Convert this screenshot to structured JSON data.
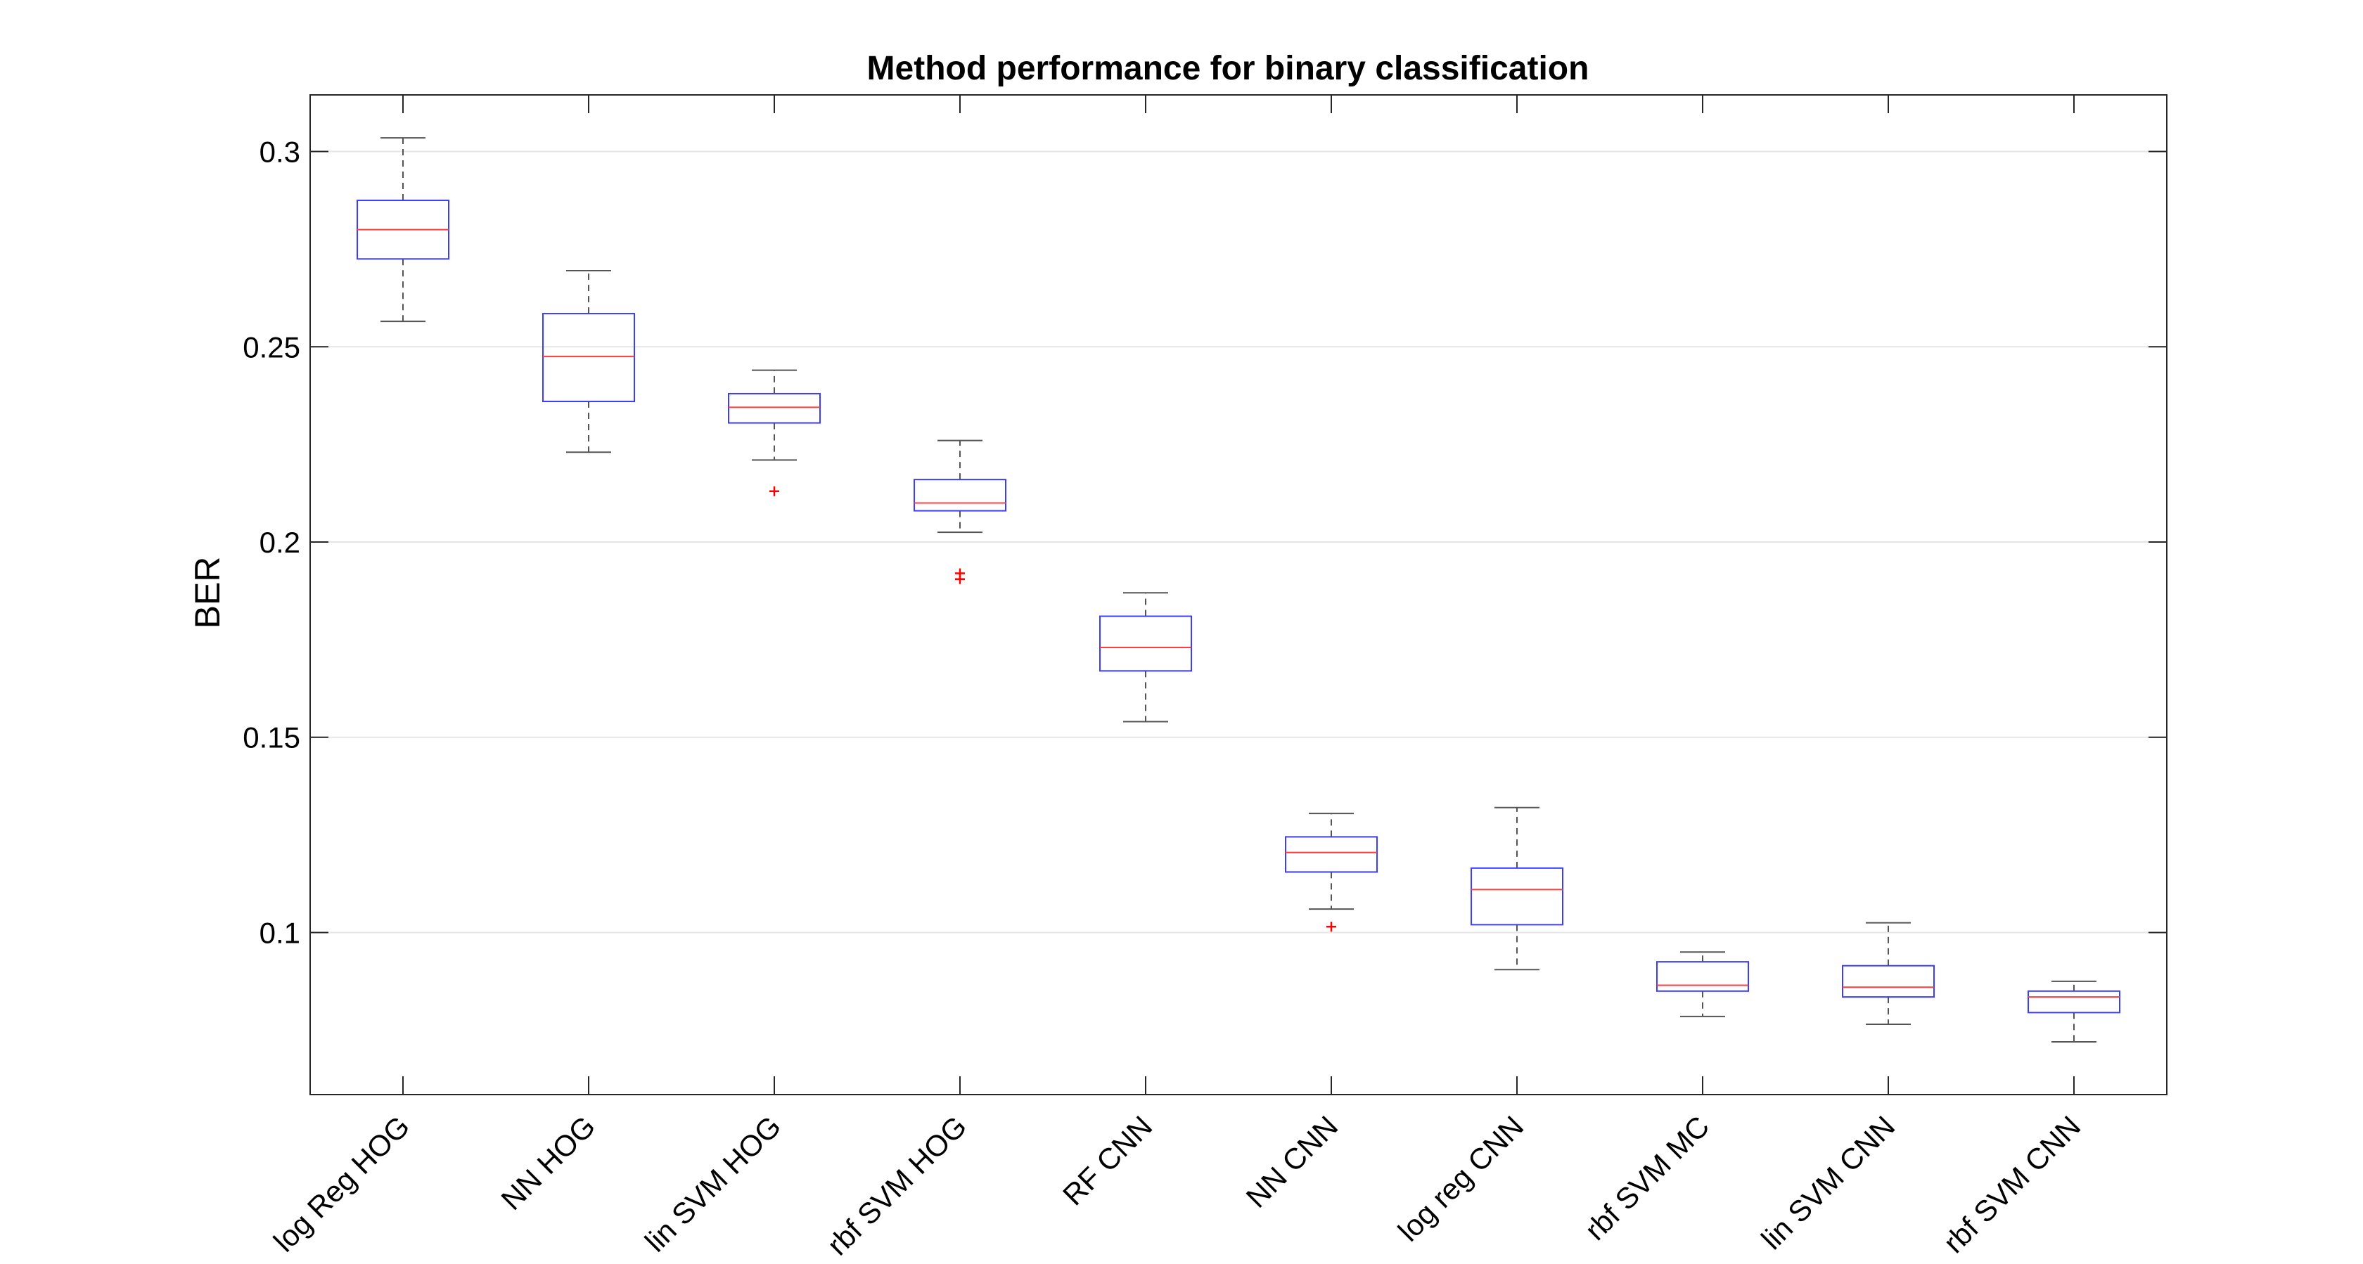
{
  "chart_data": {
    "type": "boxplot",
    "title": "Method performance for binary classification",
    "xlabel": "",
    "ylabel": "BER",
    "ylim": [
      0.0585,
      0.3145
    ],
    "yticks": [
      0.1,
      0.15,
      0.2,
      0.25,
      0.3
    ],
    "ytick_labels": [
      "0.1",
      "0.15",
      "0.2",
      "0.25",
      "0.3"
    ],
    "grid": "horizontal",
    "categories": [
      "log Reg HOG",
      "NN HOG",
      "lin SVM HOG",
      "rbf SVM HOG",
      "RF CNN",
      "NN CNN",
      "log reg CNN",
      "rbf SVM MC",
      "lin SVM CNN",
      "rbf SVM CNN"
    ],
    "boxes": [
      {
        "whisker_low": 0.2565,
        "q1": 0.2725,
        "median": 0.28,
        "q3": 0.2875,
        "whisker_high": 0.3035,
        "outliers": []
      },
      {
        "whisker_low": 0.223,
        "q1": 0.236,
        "median": 0.2475,
        "q3": 0.2585,
        "whisker_high": 0.2695,
        "outliers": []
      },
      {
        "whisker_low": 0.221,
        "q1": 0.2305,
        "median": 0.2345,
        "q3": 0.238,
        "whisker_high": 0.244,
        "outliers": [
          0.213
        ]
      },
      {
        "whisker_low": 0.2025,
        "q1": 0.208,
        "median": 0.21,
        "q3": 0.216,
        "whisker_high": 0.226,
        "outliers": [
          0.192,
          0.1905
        ]
      },
      {
        "whisker_low": 0.154,
        "q1": 0.167,
        "median": 0.173,
        "q3": 0.181,
        "whisker_high": 0.187,
        "outliers": []
      },
      {
        "whisker_low": 0.106,
        "q1": 0.1155,
        "median": 0.1205,
        "q3": 0.1245,
        "whisker_high": 0.1305,
        "outliers": [
          0.1015
        ]
      },
      {
        "whisker_low": 0.0905,
        "q1": 0.102,
        "median": 0.111,
        "q3": 0.1165,
        "whisker_high": 0.132,
        "outliers": []
      },
      {
        "whisker_low": 0.0785,
        "q1": 0.085,
        "median": 0.0865,
        "q3": 0.0925,
        "whisker_high": 0.095,
        "outliers": []
      },
      {
        "whisker_low": 0.0765,
        "q1": 0.0835,
        "median": 0.086,
        "q3": 0.0915,
        "whisker_high": 0.1025,
        "outliers": []
      },
      {
        "whisker_low": 0.072,
        "q1": 0.0795,
        "median": 0.0835,
        "q3": 0.085,
        "whisker_high": 0.0875,
        "outliers": []
      }
    ],
    "colors": {
      "box": "#3c3cff",
      "median": "#ff3c3c",
      "whisker": "#555555",
      "outlier": "#ff0000",
      "grid": "#e6e6e6",
      "axis": "#262626"
    }
  }
}
